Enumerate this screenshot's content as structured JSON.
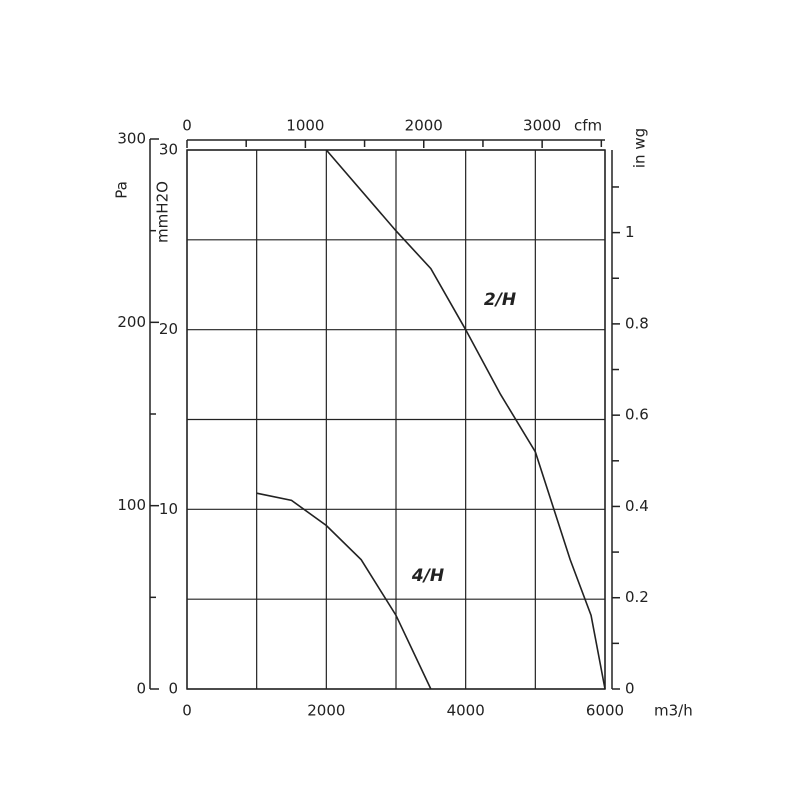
{
  "chart_data": {
    "type": "line",
    "xlabel": "m3/h",
    "xlim": [
      0,
      6000
    ],
    "xticks": [
      0,
      2000,
      4000,
      6000
    ],
    "xminor": [
      1000,
      3000,
      5000
    ],
    "ylabel": "mmH2O",
    "ylim": [
      0,
      30
    ],
    "yticks": [
      0,
      10,
      20,
      30
    ],
    "yminor": [
      5,
      15,
      25
    ],
    "grid": true,
    "color": "#222222",
    "pa_axis": {
      "label": "Pa",
      "lim": [
        0,
        294
      ],
      "ticks": [
        0,
        100,
        200,
        300
      ],
      "minor": [
        50,
        150,
        250
      ]
    },
    "y2label": "in wg",
    "y2lim": [
      0,
      1.181
    ],
    "y2ticks": [
      0,
      0.2,
      0.4,
      0.6,
      0.8,
      1
    ],
    "y2minor": [
      0.1,
      0.3,
      0.5,
      0.7,
      0.9,
      1.1
    ],
    "cfm_axis": {
      "label": "cfm",
      "lim": [
        0,
        3531
      ],
      "ticks": [
        0,
        1000,
        2000,
        3000
      ],
      "minor": [
        500,
        1500,
        2500,
        3500
      ]
    },
    "series": [
      {
        "name": "2/H",
        "x": [
          2000,
          3000,
          3500,
          4000,
          4500,
          5000,
          5500,
          5800,
          6000
        ],
        "values": [
          30,
          25.5,
          23.4,
          20,
          16.4,
          13.2,
          7.2,
          4.1,
          0
        ]
      },
      {
        "name": "4/H",
        "x": [
          1000,
          1500,
          2000,
          2500,
          3000,
          3500
        ],
        "values": [
          10.9,
          10.5,
          9.1,
          7.2,
          4.1,
          0
        ]
      }
    ]
  }
}
